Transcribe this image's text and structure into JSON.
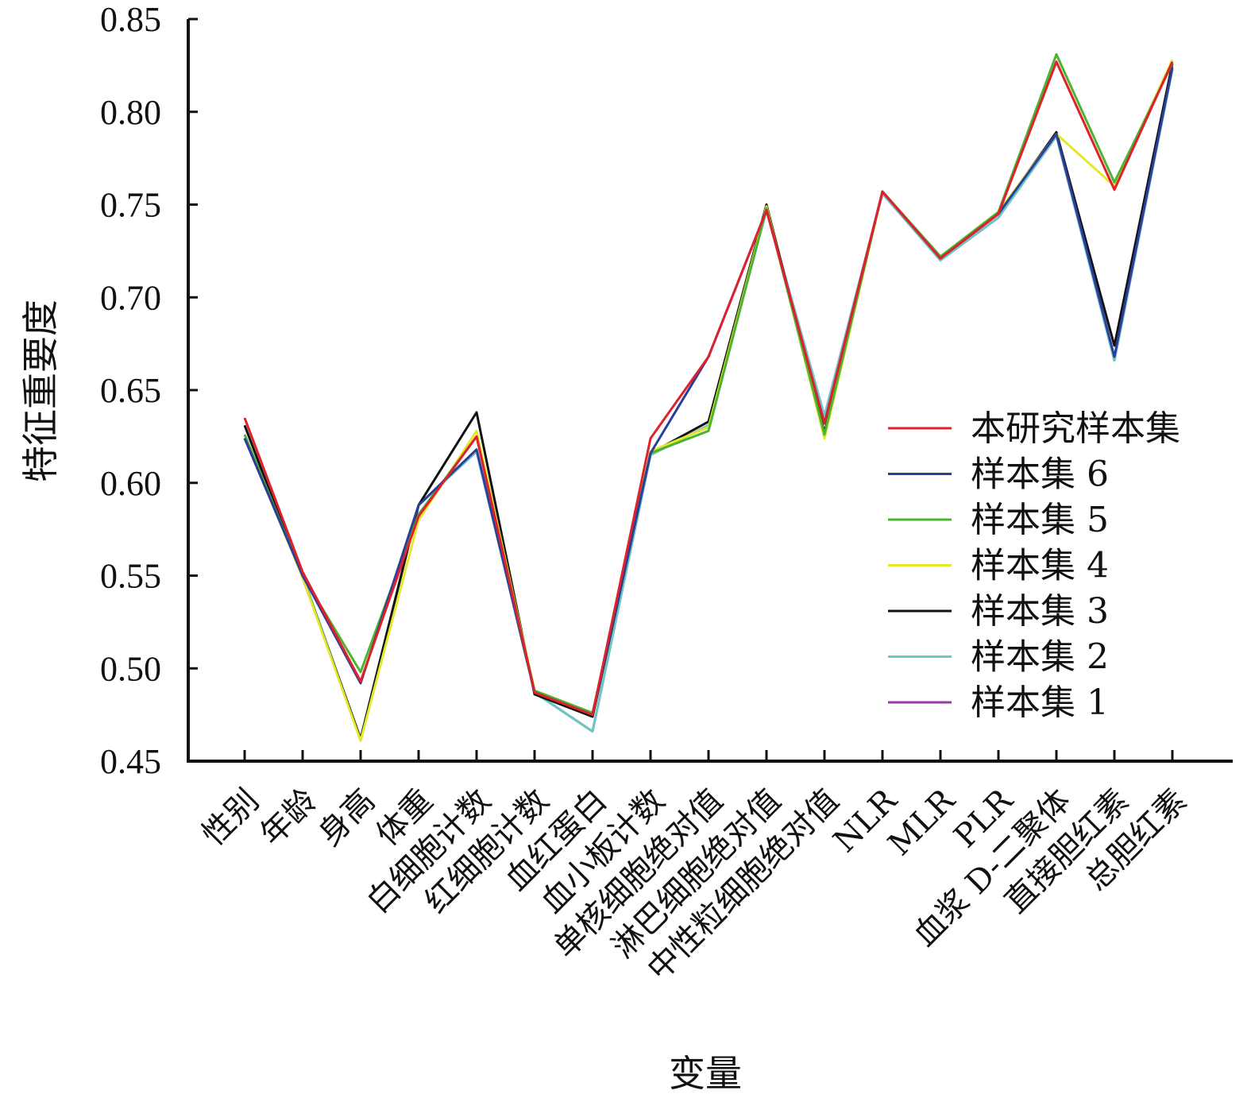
{
  "chart_data": {
    "type": "line",
    "xlabel": "变量",
    "ylabel": "特征重要度",
    "ylim": [
      0.45,
      0.85
    ],
    "yticks": [
      "0.45",
      "0.50",
      "0.55",
      "0.60",
      "0.65",
      "0.70",
      "0.75",
      "0.80",
      "0.85"
    ],
    "categories": [
      "性别",
      "年龄",
      "身高",
      "体重",
      "白细胞计数",
      "红细胞计数",
      "血红蛋白",
      "血小板计数",
      "单核细胞绝对值",
      "淋巴细胞绝对值",
      "中性粒细胞绝对值",
      "NLR",
      "MLR",
      "PLR",
      "血浆 D-二聚体",
      "直接胆红素",
      "总胆红素"
    ],
    "legend_position": "right",
    "grid": false,
    "series": [
      {
        "name": "本研究样本集",
        "color": "#e0202a",
        "values": [
          0.635,
          0.552,
          0.493,
          0.582,
          0.625,
          0.487,
          0.475,
          0.624,
          0.668,
          0.747,
          0.632,
          0.757,
          0.721,
          0.745,
          0.827,
          0.758,
          0.827
        ]
      },
      {
        "name": "样本集 6",
        "color": "#2a3f9a",
        "values": [
          0.624,
          0.55,
          0.492,
          0.588,
          0.618,
          0.487,
          0.475,
          0.616,
          0.668,
          0.747,
          0.632,
          0.757,
          0.721,
          0.745,
          0.788,
          0.668,
          0.824
        ]
      },
      {
        "name": "样本集 5",
        "color": "#4bb431",
        "values": [
          0.626,
          0.55,
          0.498,
          0.583,
          0.625,
          0.488,
          0.476,
          0.616,
          0.628,
          0.748,
          0.626,
          0.757,
          0.722,
          0.746,
          0.831,
          0.762,
          0.826
        ]
      },
      {
        "name": "样本集 4",
        "color": "#e6e62a",
        "values": [
          0.625,
          0.549,
          0.461,
          0.58,
          0.628,
          0.488,
          0.476,
          0.617,
          0.63,
          0.749,
          0.624,
          0.757,
          0.722,
          0.746,
          0.788,
          0.76,
          0.828
        ]
      },
      {
        "name": "样本集 3",
        "color": "#111111",
        "values": [
          0.631,
          0.549,
          0.462,
          0.588,
          0.638,
          0.486,
          0.474,
          0.616,
          0.633,
          0.75,
          0.627,
          0.757,
          0.722,
          0.745,
          0.789,
          0.674,
          0.826
        ]
      },
      {
        "name": "样本集 2",
        "color": "#6cc7c7",
        "values": [
          0.624,
          0.55,
          0.462,
          0.588,
          0.617,
          0.487,
          0.466,
          0.615,
          0.631,
          0.747,
          0.636,
          0.756,
          0.72,
          0.743,
          0.787,
          0.666,
          0.823
        ]
      },
      {
        "name": "样本集 1",
        "color": "#9a3ca8",
        "values": [
          0.624,
          0.55,
          0.462,
          0.588,
          0.617,
          0.487,
          0.466,
          0.615,
          0.631,
          0.747,
          0.636,
          0.756,
          0.72,
          0.743,
          0.787,
          0.666,
          0.823
        ]
      }
    ]
  }
}
